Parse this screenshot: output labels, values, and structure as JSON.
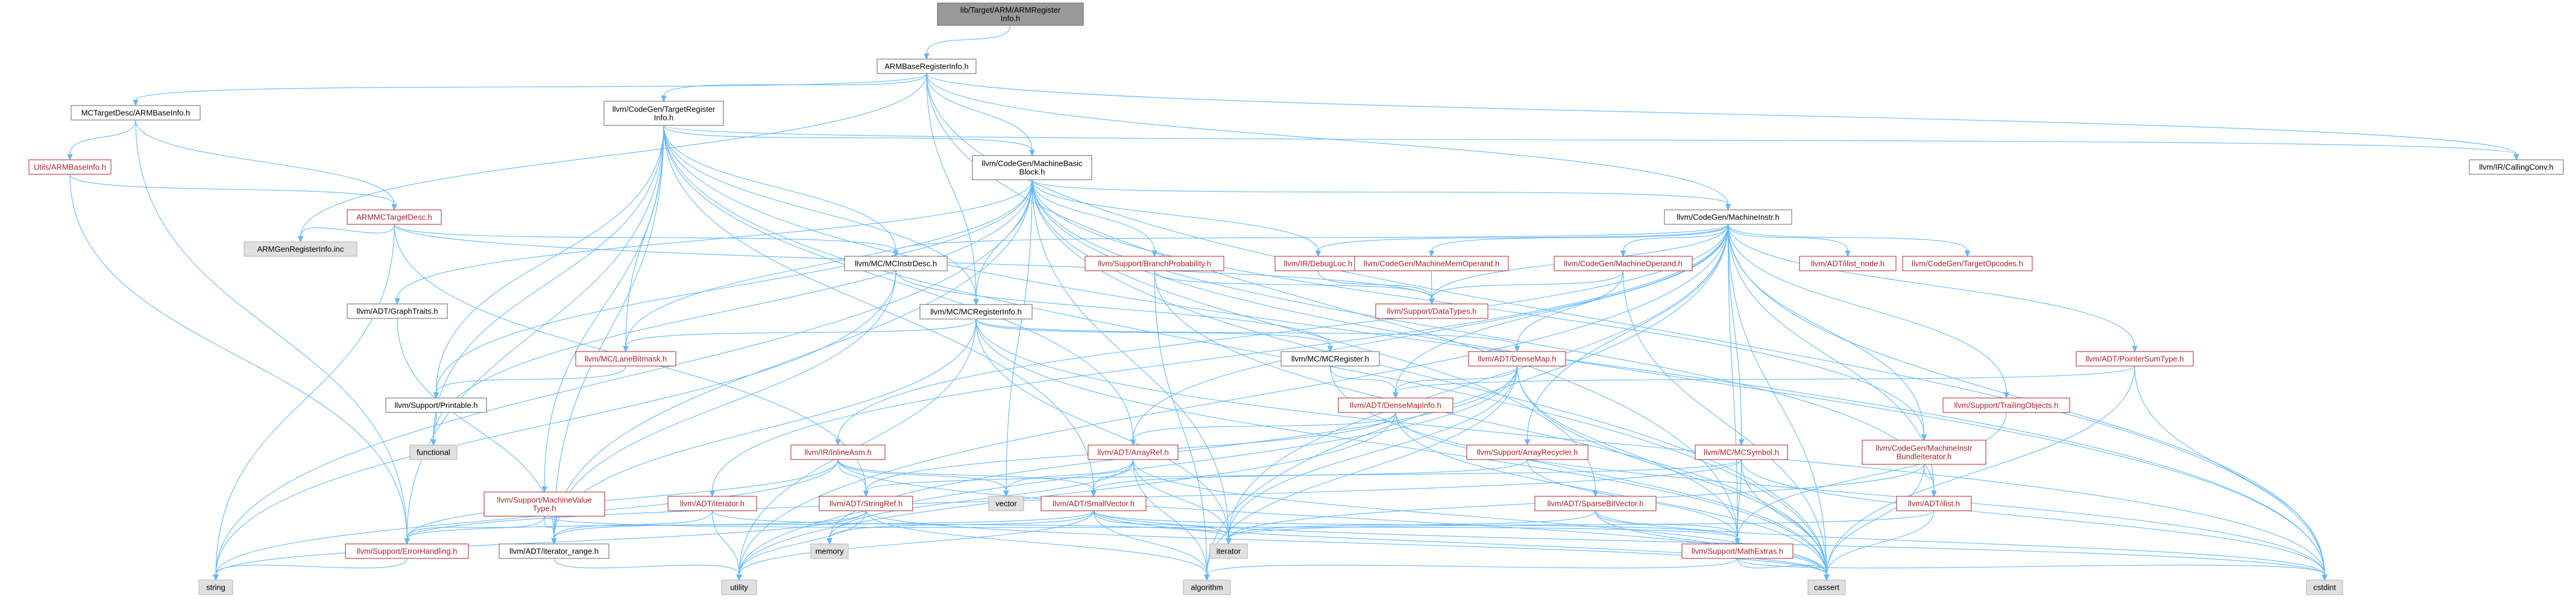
{
  "colors": {
    "edge": "#63b8ff",
    "edge_secondary": "#b2b2b2",
    "node_border_plain": "#666666",
    "node_border_red": "#b22222",
    "node_fill": "#ffffff",
    "node_fill_root": "#999999",
    "node_fill_system": "#e0e0e0",
    "text_plain": "#000000",
    "text_red": "#b22222"
  },
  "nodes": [
    {
      "id": "root",
      "lines": [
        "lib/Target/ARM/ARMRegister",
        "Info.h"
      ],
      "style": "root"
    },
    {
      "id": "armbase",
      "lines": [
        "ARMBaseRegisterInfo.h"
      ],
      "style": "plain"
    },
    {
      "id": "mctargetdesc",
      "lines": [
        "MCTargetDesc/ARMBaseInfo.h"
      ],
      "style": "plain"
    },
    {
      "id": "tri",
      "lines": [
        "llvm/CodeGen/TargetRegister",
        "Info.h"
      ],
      "style": "plain"
    },
    {
      "id": "utilsbase",
      "lines": [
        "Utils/ARMBaseInfo.h"
      ],
      "style": "red"
    },
    {
      "id": "mbb",
      "lines": [
        "llvm/CodeGen/MachineBasic",
        "Block.h"
      ],
      "style": "plain"
    },
    {
      "id": "callingconv",
      "lines": [
        "llvm/IR/CallingConv.h"
      ],
      "style": "plain"
    },
    {
      "id": "armmctd",
      "lines": [
        "ARMMCTargetDesc.h"
      ],
      "style": "red"
    },
    {
      "id": "genreginc",
      "lines": [
        "ARMGenRegisterInfo.inc"
      ],
      "style": "system"
    },
    {
      "id": "machineinstr",
      "lines": [
        "llvm/CodeGen/MachineInstr.h"
      ],
      "style": "plain"
    },
    {
      "id": "graphtraits",
      "lines": [
        "llvm/ADT/GraphTraits.h"
      ],
      "style": "plain"
    },
    {
      "id": "mcinstrdesc",
      "lines": [
        "llvm/MC/MCInstrDesc.h"
      ],
      "style": "plain"
    },
    {
      "id": "branchprob",
      "lines": [
        "llvm/Support/BranchProbability.h"
      ],
      "style": "red"
    },
    {
      "id": "debugloc",
      "lines": [
        "llvm/IR/DebugLoc.h"
      ],
      "style": "red"
    },
    {
      "id": "mmo",
      "lines": [
        "llvm/CodeGen/MachineMemOperand.h"
      ],
      "style": "red"
    },
    {
      "id": "mop",
      "lines": [
        "llvm/CodeGen/MachineOperand.h"
      ],
      "style": "red"
    },
    {
      "id": "ilistnode",
      "lines": [
        "llvm/ADT/ilist_node.h"
      ],
      "style": "red"
    },
    {
      "id": "targetopcodes",
      "lines": [
        "llvm/CodeGen/TargetOpcodes.h"
      ],
      "style": "red"
    },
    {
      "id": "datatypes",
      "lines": [
        "llvm/Support/DataTypes.h"
      ],
      "style": "red"
    },
    {
      "id": "mcreginfo",
      "lines": [
        "llvm/MC/MCRegisterInfo.h"
      ],
      "style": "plain"
    },
    {
      "id": "lanebitmask",
      "lines": [
        "llvm/MC/LaneBitmask.h"
      ],
      "style": "red"
    },
    {
      "id": "mcregister",
      "lines": [
        "llvm/MC/MCRegister.h"
      ],
      "style": "plain"
    },
    {
      "id": "densemap",
      "lines": [
        "llvm/ADT/DenseMap.h"
      ],
      "style": "red"
    },
    {
      "id": "pointersumtype",
      "lines": [
        "llvm/ADT/PointerSumType.h"
      ],
      "style": "red"
    },
    {
      "id": "trailingobjects",
      "lines": [
        "llvm/Support/TrailingObjects.h"
      ],
      "style": "red"
    },
    {
      "id": "printable",
      "lines": [
        "llvm/Support/Printable.h"
      ],
      "style": "plain"
    },
    {
      "id": "densemapinfo",
      "lines": [
        "llvm/ADT/DenseMapInfo.h"
      ],
      "style": "red"
    },
    {
      "id": "functional",
      "lines": [
        "functional"
      ],
      "style": "system"
    },
    {
      "id": "inlineasm",
      "lines": [
        "llvm/IR/InlineAsm.h"
      ],
      "style": "red"
    },
    {
      "id": "arrayref",
      "lines": [
        "llvm/ADT/ArrayRef.h"
      ],
      "style": "red"
    },
    {
      "id": "arrayrecycler",
      "lines": [
        "llvm/Support/ArrayRecycler.h"
      ],
      "style": "red"
    },
    {
      "id": "mcsymbol",
      "lines": [
        "llvm/MC/MCSymbol.h"
      ],
      "style": "red"
    },
    {
      "id": "bundleiter",
      "lines": [
        "llvm/CodeGen/MachineInstr",
        "BundleIterator.h"
      ],
      "style": "red"
    },
    {
      "id": "mvt",
      "lines": [
        "llvm/Support/MachineValue",
        "Type.h"
      ],
      "style": "red"
    },
    {
      "id": "adtiterator",
      "lines": [
        "llvm/ADT/iterator.h"
      ],
      "style": "red"
    },
    {
      "id": "stringref",
      "lines": [
        "llvm/ADT/StringRef.h"
      ],
      "style": "red"
    },
    {
      "id": "vector",
      "lines": [
        "vector"
      ],
      "style": "system"
    },
    {
      "id": "smallvector",
      "lines": [
        "llvm/ADT/SmallVector.h"
      ],
      "style": "red"
    },
    {
      "id": "sparsebitvector",
      "lines": [
        "llvm/ADT/SparseBitVector.h"
      ],
      "style": "red"
    },
    {
      "id": "ilist",
      "lines": [
        "llvm/ADT/ilist.h"
      ],
      "style": "red"
    },
    {
      "id": "errorhandling",
      "lines": [
        "llvm/Support/ErrorHandling.h"
      ],
      "style": "red"
    },
    {
      "id": "iteratorrange",
      "lines": [
        "llvm/ADT/iterator_range.h"
      ],
      "style": "plain"
    },
    {
      "id": "memory",
      "lines": [
        "memory"
      ],
      "style": "system"
    },
    {
      "id": "iterator",
      "lines": [
        "iterator"
      ],
      "style": "system"
    },
    {
      "id": "mathextras",
      "lines": [
        "llvm/Support/MathExtras.h"
      ],
      "style": "red"
    },
    {
      "id": "string",
      "lines": [
        "string"
      ],
      "style": "system"
    },
    {
      "id": "utility",
      "lines": [
        "utility"
      ],
      "style": "system"
    },
    {
      "id": "algorithm",
      "lines": [
        "algorithm"
      ],
      "style": "system"
    },
    {
      "id": "cassert",
      "lines": [
        "cassert"
      ],
      "style": "system"
    },
    {
      "id": "cstdint",
      "lines": [
        "cstdint"
      ],
      "style": "system"
    }
  ],
  "edges": [
    [
      "root",
      "armbase"
    ],
    [
      "armbase",
      "mctargetdesc"
    ],
    [
      "armbase",
      "tri"
    ],
    [
      "armbase",
      "mbb"
    ],
    [
      "armbase",
      "machineinstr"
    ],
    [
      "armbase",
      "mcreginfo"
    ],
    [
      "armbase",
      "callingconv"
    ],
    [
      "armbase",
      "genreginc"
    ],
    [
      "armbase",
      "cstdint"
    ],
    [
      "armbase",
      "mathextras"
    ],
    [
      "mctargetdesc",
      "utilsbase"
    ],
    [
      "mctargetdesc",
      "armmctd"
    ],
    [
      "mctargetdesc",
      "errorhandling"
    ],
    [
      "utilsbase",
      "armmctd"
    ],
    [
      "utilsbase",
      "errorhandling"
    ],
    [
      "armmctd",
      "genreginc"
    ],
    [
      "armmctd",
      "mcinstrdesc"
    ],
    [
      "armmctd",
      "datatypes"
    ],
    [
      "armmctd",
      "stringref"
    ],
    [
      "armmctd",
      "string"
    ],
    [
      "tri",
      "mbb"
    ],
    [
      "tri",
      "callingconv"
    ],
    [
      "tri",
      "arrayref"
    ],
    [
      "tri",
      "smallvector"
    ],
    [
      "tri",
      "iteratorrange"
    ],
    [
      "tri",
      "lanebitmask"
    ],
    [
      "tri",
      "mcreginfo"
    ],
    [
      "tri",
      "mvt"
    ],
    [
      "tri",
      "printable"
    ],
    [
      "tri",
      "cassert"
    ],
    [
      "tri",
      "cstdint"
    ],
    [
      "tri",
      "errorhandling"
    ],
    [
      "tri",
      "functional"
    ],
    [
      "tri",
      "mcinstrdesc"
    ],
    [
      "mbb",
      "graphtraits"
    ],
    [
      "mbb",
      "sparsebitvector"
    ],
    [
      "mbb",
      "ilist"
    ],
    [
      "mbb",
      "iteratorrange"
    ],
    [
      "mbb",
      "machineinstr"
    ],
    [
      "mbb",
      "bundleiter"
    ],
    [
      "mbb",
      "debugloc"
    ],
    [
      "mbb",
      "lanebitmask"
    ],
    [
      "mbb",
      "mcreginfo"
    ],
    [
      "mbb",
      "branchprob"
    ],
    [
      "mbb",
      "printable"
    ],
    [
      "mbb",
      "cassert"
    ],
    [
      "mbb",
      "cstdint"
    ],
    [
      "mbb",
      "functional"
    ],
    [
      "mbb",
      "iterator"
    ],
    [
      "mbb",
      "string"
    ],
    [
      "mbb",
      "vector"
    ],
    [
      "machineinstr",
      "densemapinfo"
    ],
    [
      "machineinstr",
      "pointersumtype"
    ],
    [
      "machineinstr",
      "arrayref"
    ],
    [
      "machineinstr",
      "ilist"
    ],
    [
      "machineinstr",
      "ilistnode"
    ],
    [
      "machineinstr",
      "adtiterator"
    ],
    [
      "machineinstr",
      "bundleiter"
    ],
    [
      "machineinstr",
      "mmo"
    ],
    [
      "machineinstr",
      "mop"
    ],
    [
      "machineinstr",
      "targetopcodes"
    ],
    [
      "machineinstr",
      "debugloc"
    ],
    [
      "machineinstr",
      "inlineasm"
    ],
    [
      "machineinstr",
      "mcinstrdesc"
    ],
    [
      "machineinstr",
      "mcsymbol"
    ],
    [
      "machineinstr",
      "arrayrecycler"
    ],
    [
      "machineinstr",
      "mathextras"
    ],
    [
      "machineinstr",
      "trailingobjects"
    ],
    [
      "machineinstr",
      "algorithm"
    ],
    [
      "machineinstr",
      "cassert"
    ],
    [
      "machineinstr",
      "cstdint"
    ],
    [
      "machineinstr",
      "utility"
    ],
    [
      "machineinstr",
      "iterator"
    ],
    [
      "machineinstr",
      "datatypes"
    ],
    [
      "graphtraits",
      "iteratorrange"
    ],
    [
      "mcinstrdesc",
      "mcregister"
    ],
    [
      "mcinstrdesc",
      "iteratorrange"
    ],
    [
      "mcinstrdesc",
      "string"
    ],
    [
      "mcreginfo",
      "densemap"
    ],
    [
      "mcreginfo",
      "iteratorrange"
    ],
    [
      "mcreginfo",
      "lanebitmask"
    ],
    [
      "mcreginfo",
      "mcregister"
    ],
    [
      "mcreginfo",
      "cassert"
    ],
    [
      "mcreginfo",
      "cstdint"
    ],
    [
      "mcreginfo",
      "iterator"
    ],
    [
      "mcreginfo",
      "utility"
    ],
    [
      "mcregister",
      "densemapinfo"
    ],
    [
      "mcregister",
      "cassert"
    ],
    [
      "lanebitmask",
      "printable"
    ],
    [
      "printable",
      "functional"
    ],
    [
      "densemap",
      "densemapinfo"
    ],
    [
      "densemap",
      "mathextras"
    ],
    [
      "densemap",
      "algorithm"
    ],
    [
      "densemap",
      "cassert"
    ],
    [
      "densemap",
      "iterator"
    ],
    [
      "densemap",
      "utility"
    ],
    [
      "densemap",
      "memory"
    ],
    [
      "densemapinfo",
      "arrayref"
    ],
    [
      "densemapinfo",
      "stringref"
    ],
    [
      "densemapinfo",
      "cassert"
    ],
    [
      "densemapinfo",
      "cstdint"
    ],
    [
      "densemapinfo",
      "utility"
    ],
    [
      "branchprob",
      "datatypes"
    ],
    [
      "branchprob",
      "algorithm"
    ],
    [
      "branchprob",
      "cassert"
    ],
    [
      "debugloc",
      "datatypes"
    ],
    [
      "mmo",
      "datatypes"
    ],
    [
      "mop",
      "densemap"
    ],
    [
      "mop",
      "datatypes"
    ],
    [
      "mop",
      "cassert"
    ],
    [
      "pointersumtype",
      "densemapinfo"
    ],
    [
      "pointersumtype",
      "cassert"
    ],
    [
      "pointersumtype",
      "cstdint"
    ],
    [
      "trailingobjects",
      "mathextras"
    ],
    [
      "inlineasm",
      "smallvector"
    ],
    [
      "inlineasm",
      "stringref"
    ],
    [
      "inlineasm",
      "errorhandling"
    ],
    [
      "inlineasm",
      "string"
    ],
    [
      "inlineasm",
      "vector"
    ],
    [
      "inlineasm",
      "cassert"
    ],
    [
      "arrayref",
      "smallvector"
    ],
    [
      "arrayref",
      "algorithm"
    ],
    [
      "arrayref",
      "cassert"
    ],
    [
      "arrayref",
      "iterator"
    ],
    [
      "arrayref",
      "memory"
    ],
    [
      "arrayref",
      "vector"
    ],
    [
      "arrayrecycler",
      "smallvector"
    ],
    [
      "arrayrecycler",
      "mathextras"
    ],
    [
      "mcsymbol",
      "stringref"
    ],
    [
      "mcsymbol",
      "errorhandling"
    ],
    [
      "mcsymbol",
      "mathextras"
    ],
    [
      "mcsymbol",
      "cassert"
    ],
    [
      "mcsymbol",
      "cstdint"
    ],
    [
      "bundleiter",
      "ilist"
    ],
    [
      "bundleiter",
      "cassert"
    ],
    [
      "bundleiter",
      "iterator"
    ],
    [
      "mvt",
      "errorhandling"
    ],
    [
      "mvt",
      "iteratorrange"
    ],
    [
      "mvt",
      "mathextras"
    ],
    [
      "adtiterator",
      "iteratorrange"
    ],
    [
      "adtiterator",
      "utility"
    ],
    [
      "adtiterator",
      "iterator"
    ],
    [
      "adtiterator",
      "cstddef"
    ],
    [
      "stringref",
      "iteratorrange"
    ],
    [
      "stringref",
      "algorithm"
    ],
    [
      "stringref",
      "cassert"
    ],
    [
      "stringref",
      "string"
    ],
    [
      "stringref",
      "utility"
    ],
    [
      "smallvector",
      "errorhandling"
    ],
    [
      "smallvector",
      "algorithm"
    ],
    [
      "smallvector",
      "cassert"
    ],
    [
      "smallvector",
      "cstdint"
    ],
    [
      "smallvector",
      "iterator"
    ],
    [
      "smallvector",
      "memory"
    ],
    [
      "smallvector",
      "utility"
    ],
    [
      "smallvector",
      "mathextras"
    ],
    [
      "sparsebitvector",
      "mathextras"
    ],
    [
      "sparsebitvector",
      "cassert"
    ],
    [
      "sparsebitvector",
      "iterator"
    ],
    [
      "sparsebitvector",
      "cstdint"
    ],
    [
      "ilist",
      "cassert"
    ],
    [
      "ilist",
      "iterator"
    ],
    [
      "errorhandling",
      "string"
    ],
    [
      "iteratorrange",
      "utility"
    ],
    [
      "mathextras",
      "algorithm"
    ],
    [
      "mathextras",
      "cassert"
    ],
    [
      "mathextras",
      "cstdint"
    ]
  ]
}
